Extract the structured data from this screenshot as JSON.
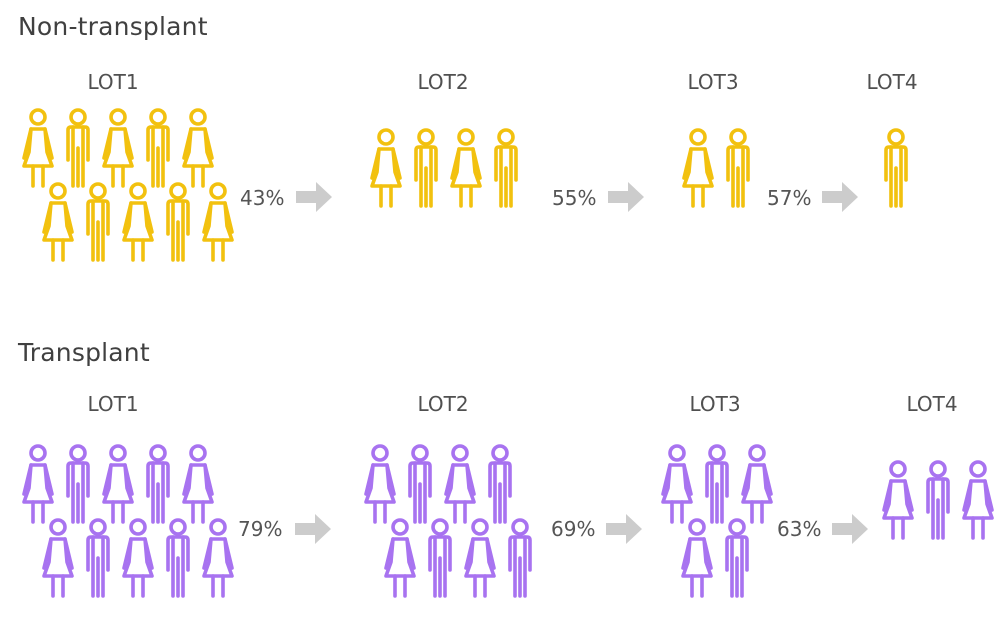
{
  "colors": {
    "non_transplant": "#F2C10F",
    "transplant": "#A873F0",
    "arrow": "#CCCCCC",
    "text": "#444444"
  },
  "sections": [
    {
      "title": "Non-transplant",
      "lots": [
        {
          "label": "LOT1",
          "figures": [
            "female",
            "male",
            "female",
            "male",
            "female",
            "female",
            "male",
            "female",
            "male",
            "female"
          ]
        },
        {
          "label": "LOT2",
          "figures": [
            "female",
            "male",
            "female",
            "male"
          ]
        },
        {
          "label": "LOT3",
          "figures": [
            "female",
            "male"
          ]
        },
        {
          "label": "LOT4",
          "figures": [
            "male"
          ]
        }
      ],
      "transitions": [
        "43%",
        "55%",
        "57%"
      ]
    },
    {
      "title": "Transplant",
      "lots": [
        {
          "label": "LOT1",
          "figures": [
            "female",
            "male",
            "female",
            "male",
            "female",
            "female",
            "male",
            "female",
            "male",
            "female"
          ]
        },
        {
          "label": "LOT2",
          "figures": [
            "female",
            "male",
            "female",
            "male",
            "female",
            "male",
            "female",
            "male"
          ]
        },
        {
          "label": "LOT3",
          "figures": [
            "female",
            "male",
            "female",
            "female",
            "male"
          ]
        },
        {
          "label": "LOT4",
          "figures": [
            "female",
            "male",
            "female"
          ]
        }
      ],
      "transitions": [
        "79%",
        "69%",
        "63%"
      ]
    }
  ]
}
